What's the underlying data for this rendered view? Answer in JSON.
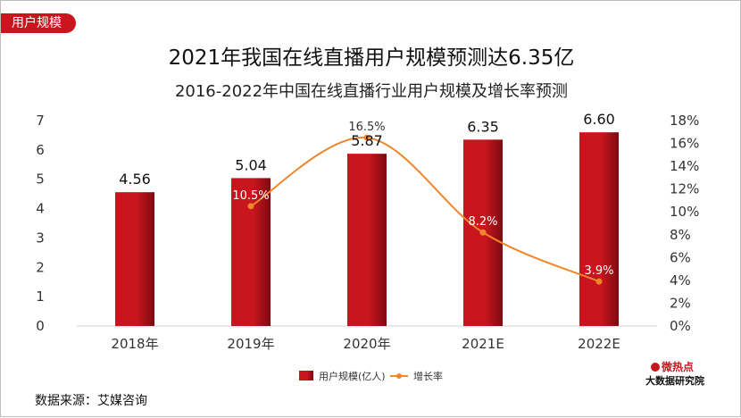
{
  "tag": "用户规模",
  "header": {
    "title": "2021年我国在线直播用户规模预测达6.35亿",
    "subtitle": "2016-2022年中国在线直播行业用户规模及增长率预测"
  },
  "source": "数据来源：艾媒咨询",
  "logo": {
    "line1": "微热点",
    "line2": "大数据研究院"
  },
  "colors": {
    "bar": "#c9151e",
    "bar_dark": "#7d0a10",
    "line": "#f0862a",
    "axis_text": "#333333"
  },
  "chart_data": {
    "type": "bar",
    "categories": [
      "2018年",
      "2019年",
      "2020年",
      "2021E",
      "2022E"
    ],
    "series": [
      {
        "name": "用户规模(亿人)",
        "type": "bar",
        "axis": "left",
        "values": [
          4.56,
          5.04,
          5.87,
          6.35,
          6.6
        ],
        "labels": [
          "4.56",
          "5.04",
          "5.87",
          "6.35",
          "6.60"
        ]
      },
      {
        "name": "增长率",
        "type": "line",
        "axis": "right",
        "values": [
          null,
          10.5,
          16.5,
          8.2,
          3.9
        ],
        "labels": [
          "",
          "10.5%",
          "16.5%",
          "8.2%",
          "3.9%"
        ]
      }
    ],
    "y_left": {
      "min": 0,
      "max": 7,
      "ticks": [
        "0",
        "1",
        "2",
        "3",
        "4",
        "5",
        "6",
        "7"
      ]
    },
    "y_right": {
      "min": 0,
      "max": 18,
      "ticks": [
        "0%",
        "2%",
        "4%",
        "6%",
        "8%",
        "10%",
        "12%",
        "14%",
        "16%",
        "18%"
      ]
    },
    "legend": {
      "position": "bottom",
      "items": [
        "用户规模(亿人)",
        "增长率"
      ]
    },
    "grid": false
  }
}
